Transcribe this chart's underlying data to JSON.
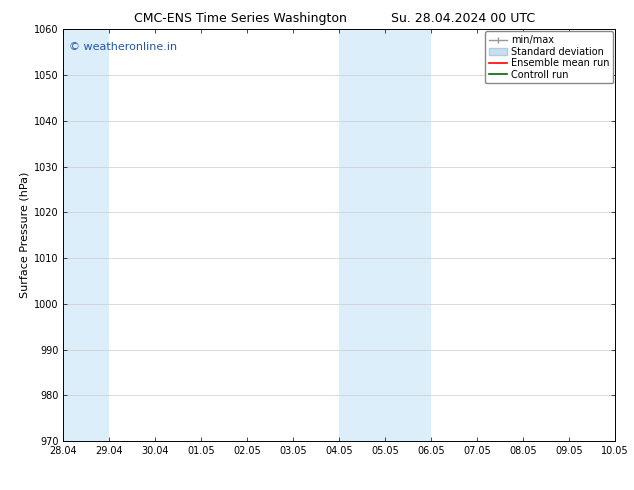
{
  "title_left": "CMC-ENS Time Series Washington",
  "title_right": "Su. 28.04.2024 00 UTC",
  "ylabel": "Surface Pressure (hPa)",
  "ylim": [
    970,
    1060
  ],
  "yticks": [
    970,
    980,
    990,
    1000,
    1010,
    1020,
    1030,
    1040,
    1050,
    1060
  ],
  "xtick_labels": [
    "28.04",
    "29.04",
    "30.04",
    "01.05",
    "02.05",
    "03.05",
    "04.05",
    "05.05",
    "06.05",
    "07.05",
    "08.05",
    "09.05",
    "10.05"
  ],
  "xtick_values": [
    0,
    1,
    2,
    3,
    4,
    5,
    6,
    7,
    8,
    9,
    10,
    11,
    12
  ],
  "shaded_regions": [
    {
      "x_start": 0,
      "x_end": 1,
      "color": "#dceef9"
    },
    {
      "x_start": 6,
      "x_end": 8,
      "color": "#dceef9"
    }
  ],
  "watermark_text": "© weatheronline.in",
  "watermark_color": "#2255aa",
  "background_color": "#ffffff",
  "title_fontsize": 9,
  "axis_label_fontsize": 8,
  "tick_fontsize": 7,
  "legend_fontsize": 7,
  "watermark_fontsize": 8
}
